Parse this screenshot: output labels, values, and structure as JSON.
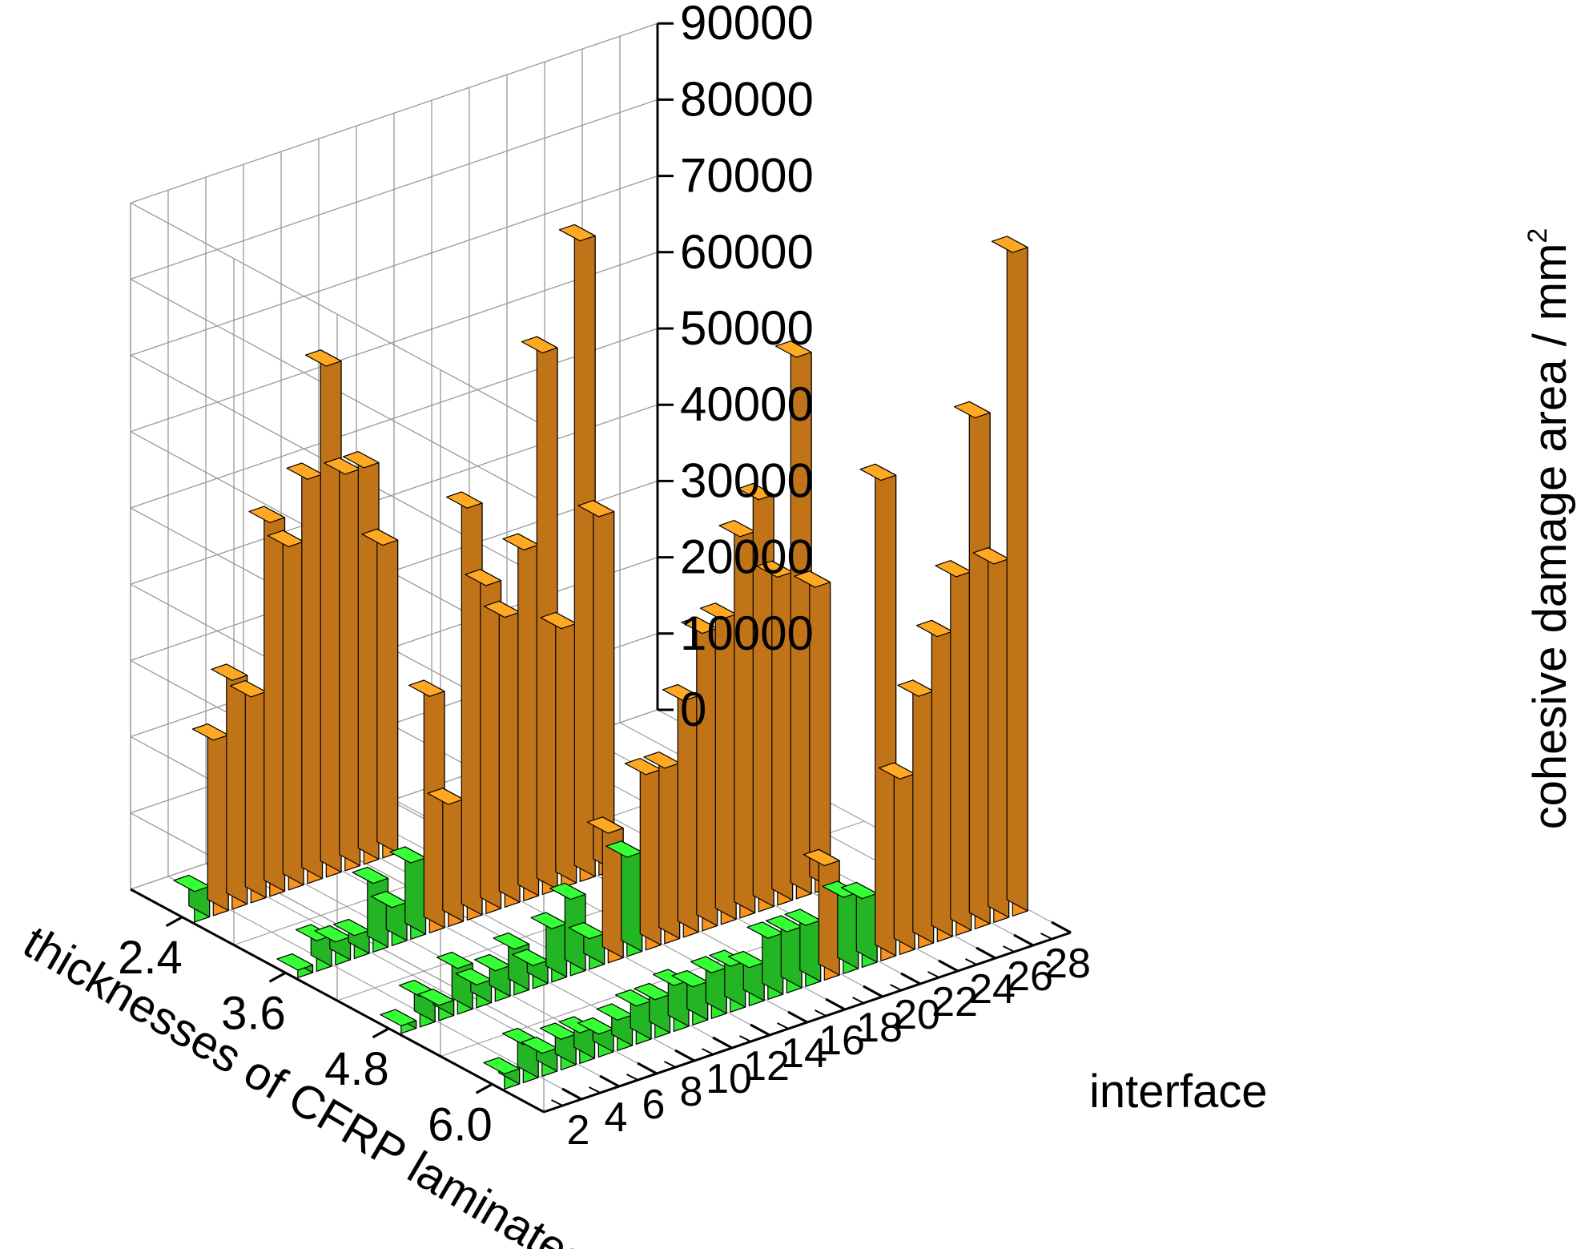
{
  "chart_data": {
    "type": "bar3d",
    "zlabel": "cohesive damage area / mm",
    "zlabel_superscript": "2",
    "ylabel": "thicknesses of CFRP laminates",
    "xlabel": "interface",
    "zlim": [
      0,
      90000
    ],
    "z_ticks": [
      "0",
      "10000",
      "20000",
      "30000",
      "40000",
      "50000",
      "60000",
      "70000",
      "80000",
      "90000"
    ],
    "x_ticks": [
      "2",
      "4",
      "6",
      "8",
      "10",
      "12",
      "14",
      "16",
      "18",
      "20",
      "22",
      "24",
      "26",
      "28"
    ],
    "y_ticks": [
      "2.4",
      "3.6",
      "4.8",
      "6.0"
    ],
    "grid": true,
    "colors": {
      "orange": "#f7931e",
      "green": "#2ee82e",
      "grid": "#999999",
      "axis": "#000000"
    },
    "series": [
      {
        "thickness": "2.4",
        "interfaces": [
          1,
          2,
          3,
          4,
          5,
          6,
          7,
          8,
          9,
          10,
          11,
          12,
          13
        ],
        "values": [
          4000,
          23000,
          30000,
          27000,
          49000,
          45000,
          53000,
          67000,
          52000,
          52000,
          41000,
          0,
          0
        ],
        "colors": [
          "green",
          "orange",
          "orange",
          "orange",
          "orange",
          "orange",
          "orange",
          "orange",
          "orange",
          "orange",
          "orange",
          "orange",
          "orange"
        ]
      },
      {
        "thickness": "3.6",
        "interfaces": [
          1,
          2,
          3,
          4,
          5,
          6,
          7,
          8,
          9,
          10,
          11,
          12,
          13,
          14,
          15,
          16,
          17,
          18,
          19
        ],
        "values": [
          1000,
          4000,
          3000,
          3000,
          9000,
          5000,
          10000,
          31000,
          16000,
          54000,
          43000,
          38000,
          46000,
          71000,
          34000,
          84000,
          47000,
          0,
          0
        ],
        "colors": [
          "green",
          "green",
          "green",
          "green",
          "green",
          "green",
          "green",
          "orange",
          "orange",
          "orange",
          "orange",
          "orange",
          "orange",
          "orange",
          "orange",
          "orange",
          "orange",
          "orange",
          "orange"
        ]
      },
      {
        "thickness": "4.8",
        "interfaces": [
          1,
          2,
          3,
          4,
          5,
          6,
          7,
          8,
          9,
          10,
          11,
          12,
          13,
          14,
          15,
          16,
          17,
          18,
          19,
          20,
          21,
          22,
          23,
          24,
          25
        ],
        "values": [
          1000,
          4000,
          2000,
          6000,
          3000,
          4000,
          6000,
          3000,
          7000,
          10000,
          4000,
          17000,
          13000,
          23000,
          23000,
          31000,
          39000,
          40000,
          50000,
          54000,
          43000,
          71000,
          40000,
          0,
          0
        ],
        "colors": [
          "green",
          "green",
          "green",
          "green",
          "green",
          "green",
          "green",
          "green",
          "green",
          "green",
          "green",
          "orange",
          "green",
          "orange",
          "orange",
          "orange",
          "orange",
          "orange",
          "orange",
          "orange",
          "orange",
          "orange",
          "orange",
          "orange",
          "orange"
        ]
      },
      {
        "thickness": "6.0",
        "interfaces": [
          1,
          2,
          3,
          4,
          5,
          6,
          7,
          8,
          9,
          10,
          11,
          12,
          13,
          14,
          15,
          16,
          17,
          18,
          19,
          20,
          21,
          22,
          23,
          24,
          25,
          26,
          27,
          28
        ],
        "values": [
          2000,
          5000,
          3000,
          4000,
          4000,
          3000,
          4000,
          5000,
          5000,
          6000,
          5000,
          6000,
          6000,
          5000,
          8000,
          8000,
          8000,
          15000,
          10000,
          9000,
          63000,
          23000,
          33000,
          40000,
          47000,
          67000,
          47000,
          87000
        ],
        "colors": [
          "green",
          "green",
          "green",
          "green",
          "green",
          "green",
          "green",
          "green",
          "green",
          "green",
          "green",
          "green",
          "green",
          "green",
          "green",
          "green",
          "green",
          "orange",
          "green",
          "green",
          "orange",
          "orange",
          "orange",
          "orange",
          "orange",
          "orange",
          "orange",
          "orange"
        ]
      }
    ]
  }
}
